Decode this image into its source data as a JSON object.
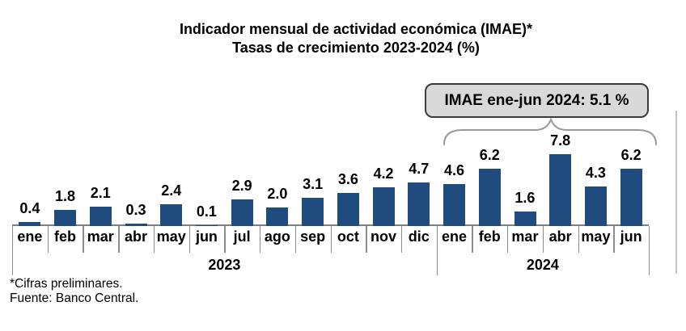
{
  "chart_data": {
    "type": "bar",
    "title": "Indicador mensual de actividad económica (IMAE)*",
    "subtitle": "Tasas de crecimiento 2023-2024 (%)",
    "categories": [
      "ene",
      "feb",
      "mar",
      "abr",
      "may",
      "jun",
      "jul",
      "ago",
      "sep",
      "oct",
      "nov",
      "dic",
      "ene",
      "feb",
      "mar",
      "abr",
      "may",
      "jun"
    ],
    "values": [
      0.4,
      1.8,
      2.1,
      0.3,
      2.4,
      0.1,
      2.9,
      2.0,
      3.1,
      3.6,
      4.2,
      4.7,
      4.6,
      6.2,
      1.6,
      7.8,
      4.3,
      6.2
    ],
    "year_groups": [
      {
        "label": "2023",
        "count": 12
      },
      {
        "label": "2024",
        "count": 6
      }
    ],
    "ylim": [
      0,
      8.5
    ],
    "grid": false,
    "legend": "none",
    "data_labels": true,
    "bar_color": "#1F4B7E",
    "axis_line_color": "#7F7F7F",
    "separator_color": "#8C8C8C",
    "annotation": {
      "text": "IMAE ene-jun 2024: 5.1 %",
      "applies_to": "2024",
      "fill_color": "#D9D9D9",
      "border_color": "#3A3A3A",
      "brace_color": "#9A9A9A"
    }
  },
  "footnotes": [
    "*Cifras preliminares.",
    "Fuente: Banco Central."
  ]
}
